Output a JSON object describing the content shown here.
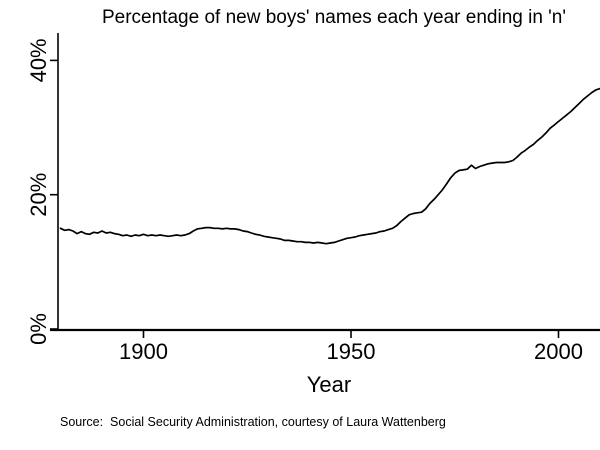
{
  "figure": {
    "title": "Percentage of new boys' names each year ending in 'n'",
    "source_note": "Source:  Social Security Administration, courtesy of Laura Wattenberg"
  },
  "chart_data": {
    "type": "line",
    "title": "Percentage of new boys' names each year ending in 'n'",
    "xlabel": "Year",
    "ylabel": "",
    "x_tick_labels": [
      "1900",
      "1950",
      "2000"
    ],
    "x_tick_years": [
      1900,
      1950,
      2000
    ],
    "y_tick_labels": [
      "0%",
      "20%",
      "40%"
    ],
    "y_tick_values": [
      0,
      20,
      40
    ],
    "xlim": [
      1879.5,
      2011
    ],
    "ylim": [
      0,
      44
    ],
    "grid": false,
    "legend": "none",
    "line_color": "#000000",
    "background_color": "#ffffff",
    "start_year": 1880,
    "values": [
      15.0,
      14.7,
      14.8,
      14.6,
      14.2,
      14.5,
      14.2,
      14.1,
      14.4,
      14.3,
      14.6,
      14.3,
      14.4,
      14.2,
      14.1,
      13.9,
      14.0,
      13.8,
      14.0,
      13.9,
      14.1,
      13.9,
      14.0,
      13.9,
      14.0,
      13.9,
      13.8,
      13.9,
      14.0,
      13.9,
      14.0,
      14.2,
      14.6,
      14.9,
      15.0,
      15.1,
      15.1,
      15.0,
      15.0,
      14.9,
      15.0,
      14.9,
      14.9,
      14.8,
      14.6,
      14.5,
      14.3,
      14.1,
      14.0,
      13.8,
      13.7,
      13.6,
      13.5,
      13.4,
      13.2,
      13.2,
      13.1,
      13.0,
      13.0,
      12.9,
      12.9,
      12.8,
      12.9,
      12.8,
      12.7,
      12.8,
      12.9,
      13.1,
      13.3,
      13.5,
      13.6,
      13.7,
      13.9,
      14.0,
      14.1,
      14.2,
      14.3,
      14.5,
      14.6,
      14.8,
      15.0,
      15.4,
      16.0,
      16.5,
      17.0,
      17.2,
      17.3,
      17.4,
      17.9,
      18.7,
      19.3,
      20.0,
      20.7,
      21.6,
      22.5,
      23.2,
      23.6,
      23.7,
      23.8,
      24.4,
      23.9,
      24.2,
      24.4,
      24.6,
      24.7,
      24.8,
      24.8,
      24.8,
      24.9,
      25.1,
      25.6,
      26.2,
      26.6,
      27.1,
      27.5,
      28.1,
      28.6,
      29.2,
      29.9,
      30.4,
      30.9,
      31.4,
      31.9,
      32.4,
      33.0,
      33.6,
      34.2,
      34.7,
      35.2,
      35.6,
      35.8,
      35.9
    ]
  }
}
